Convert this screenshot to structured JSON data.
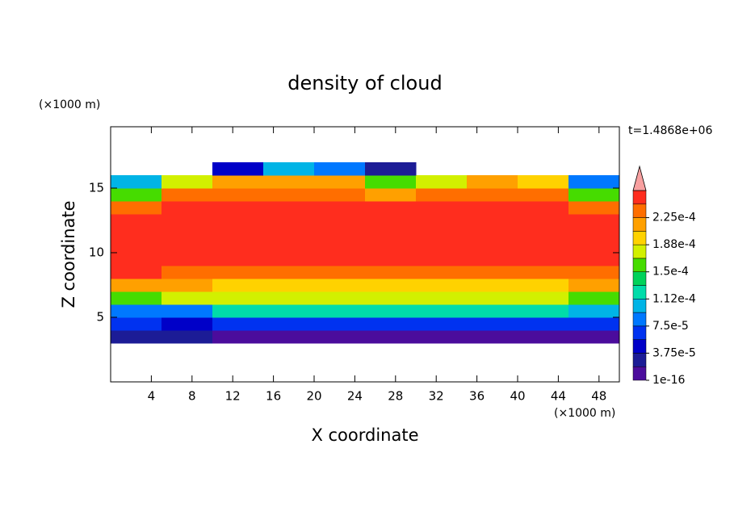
{
  "chart_data": {
    "type": "contour",
    "title": "density of cloud",
    "x_label": "X coordinate",
    "y_label": "Z coordinate",
    "x_unit": "(×1000 m)",
    "y_unit": "(×1000 m)",
    "time_label": "t=1.4868e+06",
    "xlim": [
      0,
      50
    ],
    "ylim": [
      0,
      19.75
    ],
    "xticks": [
      4,
      8,
      12,
      16,
      20,
      24,
      28,
      32,
      36,
      40,
      44,
      48
    ],
    "yticks": [
      5,
      10,
      15
    ],
    "field": {
      "x_edges": [
        0,
        5,
        10,
        15,
        20,
        25,
        30,
        35,
        40,
        45,
        50
      ],
      "z_edges": [
        3,
        4,
        5,
        6,
        7,
        8,
        9,
        10,
        11,
        12,
        13,
        14,
        15,
        16,
        17
      ],
      "values": [
        [
          3e-05,
          2e-05,
          1e-05,
          1e-05,
          1e-05,
          1e-05,
          1e-05,
          1e-05,
          1e-05,
          1e-05
        ],
        [
          6e-05,
          5e-05,
          7e-05,
          7e-05,
          7e-05,
          7e-05,
          7e-05,
          7e-05,
          7e-05,
          6e-05
        ],
        [
          8e-05,
          9e-05,
          0.00012,
          0.00012,
          0.00012,
          0.00012,
          0.00012,
          0.00012,
          0.00012,
          0.00011
        ],
        [
          0.00016,
          0.00017,
          0.00017,
          0.00017,
          0.00017,
          0.00017,
          0.00017,
          0.00017,
          0.00017,
          0.00016
        ],
        [
          0.00022,
          0.00021,
          0.000205,
          0.000205,
          0.000205,
          0.000205,
          0.000205,
          0.000205,
          0.000205,
          0.00021
        ],
        [
          0.000245,
          0.00023,
          0.00023,
          0.00023,
          0.00023,
          0.00023,
          0.00023,
          0.00023,
          0.00023,
          0.00023
        ],
        [
          0.00025,
          0.00025,
          0.000245,
          0.000245,
          0.000245,
          0.000245,
          0.000245,
          0.000245,
          0.000245,
          0.000245
        ],
        [
          0.00025,
          0.00025,
          0.00025,
          0.00025,
          0.00025,
          0.00025,
          0.00025,
          0.00025,
          0.00025,
          0.00025
        ],
        [
          0.00025,
          0.00025,
          0.00025,
          0.00025,
          0.00025,
          0.00025,
          0.00025,
          0.00025,
          0.00025,
          0.00025
        ],
        [
          0.00025,
          0.00025,
          0.00025,
          0.00025,
          0.00025,
          0.00025,
          0.00025,
          0.00025,
          0.00025,
          0.00025
        ],
        [
          0.00023,
          0.00025,
          0.000245,
          0.000245,
          0.000245,
          0.000245,
          0.000245,
          0.000245,
          0.000245,
          0.00024
        ],
        [
          0.00015,
          0.00023,
          0.00024,
          0.00024,
          0.00024,
          0.00022,
          0.00024,
          0.00024,
          0.00023,
          0.00016
        ],
        [
          0.0001,
          0.00018,
          0.00022,
          0.00022,
          0.00022,
          0.00016,
          0.00018,
          0.00021,
          0.0002,
          8e-05
        ],
        [
          null,
          null,
          5e-05,
          0.0001,
          8e-05,
          3e-05,
          null,
          null,
          null,
          null
        ]
      ]
    },
    "colorbar": {
      "levels": [
        0,
        1.875e-05,
        3.75e-05,
        5.625e-05,
        7.5e-05,
        9.375e-05,
        0.0001125,
        0.00013125,
        0.00015,
        0.00016875,
        0.0001875,
        0.00020625,
        0.000225,
        0.00024375,
        0.0002625
      ],
      "colors": [
        "#4b0c9c",
        "#1c1c96",
        "#0000c8",
        "#0032f0",
        "#0078ff",
        "#00b4e6",
        "#00dcaa",
        "#00d25a",
        "#46dc00",
        "#d2f000",
        "#ffd200",
        "#ffa000",
        "#ff6e00",
        "#ff2d1e"
      ],
      "extend_color": "#f8a0a0",
      "ticks": [
        {
          "value": 1e-16,
          "label": "1e-16"
        },
        {
          "value": 3.75e-05,
          "label": "3.75e-5"
        },
        {
          "value": 7.5e-05,
          "label": "7.5e-5"
        },
        {
          "value": 0.0001125,
          "label": "1.12e-4"
        },
        {
          "value": 0.00015,
          "label": "1.5e-4"
        },
        {
          "value": 0.0001875,
          "label": "1.88e-4"
        },
        {
          "value": 0.000225,
          "label": "2.25e-4"
        }
      ]
    }
  }
}
